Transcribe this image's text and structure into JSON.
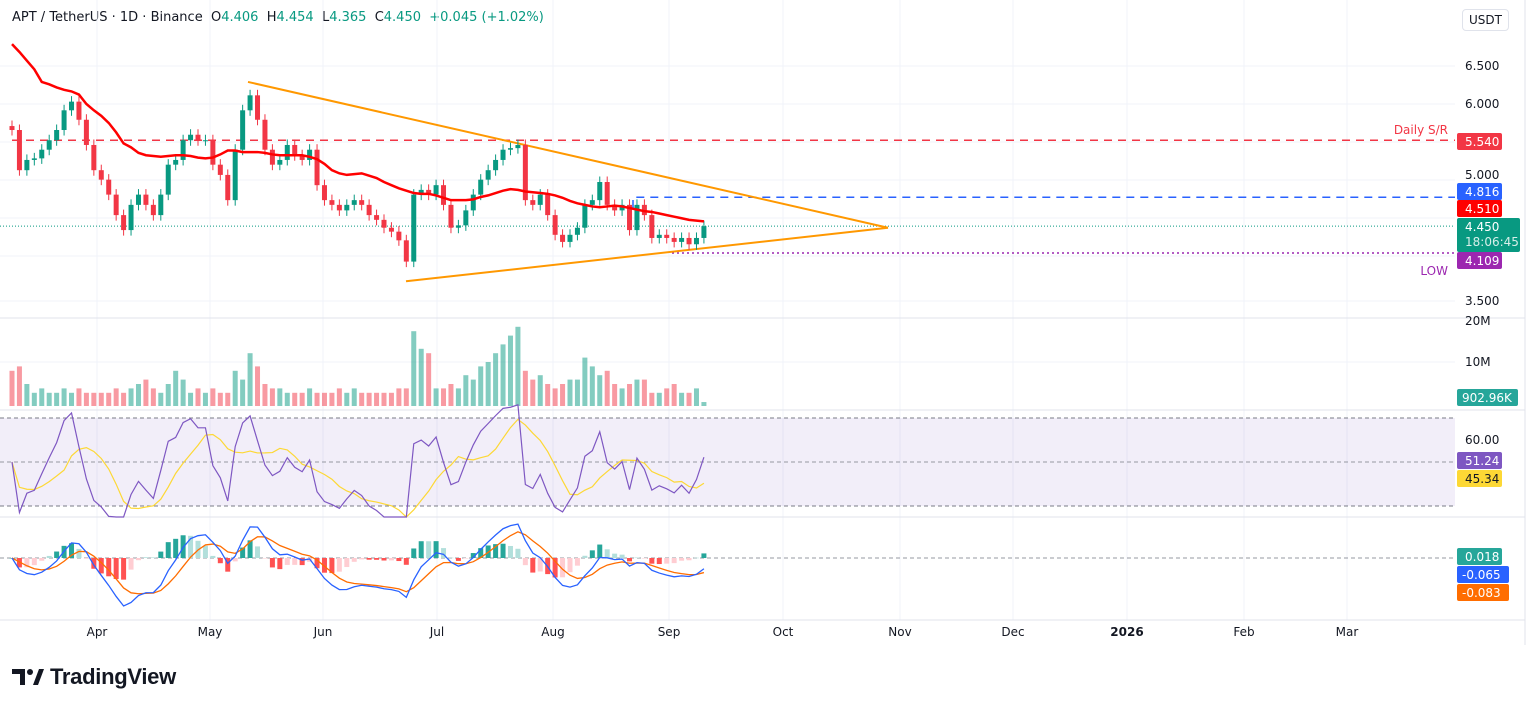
{
  "header": {
    "symbol": "APT / TetherUS · 1D · Binance",
    "o_label": "O",
    "o": "4.406",
    "h_label": "H",
    "h": "4.454",
    "l_label": "L",
    "l": "4.365",
    "c_label": "C",
    "c": "4.450",
    "change": "+0.045 (+1.02%)"
  },
  "currency": "USDT",
  "brand": "TradingView",
  "colors": {
    "up": "#089981",
    "down": "#f23645",
    "ma": "#ff0000",
    "triangle": "#ff9800",
    "resistance": "#f23645",
    "level_blue": "#2962ff",
    "low": "#9c27b0",
    "rsi": "#7e57c2",
    "rsi_ma": "#fdd835",
    "macd": "#2962ff",
    "signal": "#ff6d00"
  },
  "chart_data": {
    "type": "candlestick",
    "timeframe": "1D",
    "x_ticks": [
      "Apr",
      "May",
      "Jun",
      "Jul",
      "Aug",
      "Sep",
      "Oct",
      "Nov",
      "Dec",
      "2026",
      "Feb",
      "Mar"
    ],
    "price_axis": {
      "ticks": [
        "6.500",
        "6.000",
        "5.000",
        "3.500"
      ],
      "scale": "linear"
    },
    "closes": [
      5.67,
      5.16,
      5.29,
      5.31,
      5.42,
      5.54,
      5.67,
      5.92,
      6.03,
      5.8,
      5.48,
      5.16,
      5.04,
      4.85,
      4.59,
      4.4,
      4.72,
      4.85,
      4.72,
      4.59,
      4.85,
      5.23,
      5.29,
      5.54,
      5.61,
      5.54,
      5.54,
      5.23,
      5.1,
      4.78,
      5.42,
      5.92,
      6.11,
      5.8,
      5.42,
      5.23,
      5.29,
      5.48,
      5.35,
      5.29,
      5.42,
      4.97,
      4.78,
      4.72,
      4.65,
      4.72,
      4.78,
      4.72,
      4.59,
      4.53,
      4.43,
      4.38,
      4.27,
      4.0,
      4.85,
      4.91,
      4.85,
      4.97,
      4.72,
      4.43,
      4.46,
      4.65,
      4.85,
      5.04,
      5.16,
      5.29,
      5.42,
      5.44,
      5.48,
      4.78,
      4.72,
      4.85,
      4.59,
      4.34,
      4.25,
      4.34,
      4.43,
      4.72,
      4.78,
      5.01,
      4.72,
      4.65,
      4.72,
      4.4,
      4.72,
      4.59,
      4.3,
      4.34,
      4.3,
      4.25,
      4.3,
      4.22,
      4.3,
      4.45
    ],
    "moving_average": [
      6.76,
      6.66,
      6.55,
      6.44,
      6.28,
      6.25,
      6.21,
      6.18,
      6.16,
      6.12,
      6.0,
      5.92,
      5.85,
      5.76,
      5.64,
      5.5,
      5.45,
      5.38,
      5.35,
      5.34,
      5.33,
      5.34,
      5.35,
      5.35,
      5.34,
      5.32,
      5.31,
      5.32,
      5.36,
      5.41,
      5.41,
      5.39,
      5.39,
      5.39,
      5.38,
      5.36,
      5.35,
      5.35,
      5.35,
      5.35,
      5.33,
      5.3,
      5.24,
      5.16,
      5.12,
      5.1,
      5.11,
      5.12,
      5.09,
      5.06,
      5.01,
      4.97,
      4.93,
      4.9,
      4.87,
      4.86,
      4.86,
      4.84,
      4.81,
      4.78,
      4.78,
      4.78,
      4.79,
      4.82,
      4.84,
      4.87,
      4.9,
      4.92,
      4.91,
      4.89,
      4.88,
      4.87,
      4.86,
      4.84,
      4.81,
      4.77,
      4.74,
      4.72,
      4.7,
      4.69,
      4.7,
      4.71,
      4.7,
      4.68,
      4.66,
      4.64,
      4.63,
      4.61,
      4.59,
      4.57,
      4.55,
      4.53,
      4.52,
      4.51
    ],
    "volume_millions": [
      8,
      9,
      5,
      3,
      4,
      3,
      3,
      4,
      3,
      4,
      3,
      3,
      3,
      3,
      4,
      3,
      4,
      5,
      6,
      4,
      3,
      5,
      8,
      6,
      3,
      4,
      3,
      4,
      3,
      3,
      8,
      6,
      12,
      9,
      5,
      4,
      4,
      3,
      3,
      3,
      4,
      3,
      3,
      3,
      4,
      3,
      4,
      3,
      3,
      3,
      3,
      3,
      4,
      4,
      17,
      13,
      12,
      4,
      4,
      5,
      4,
      7,
      6,
      9,
      10,
      12,
      14,
      16,
      18,
      8,
      6,
      7,
      5,
      4,
      5,
      6,
      6,
      11,
      9,
      7,
      8,
      5,
      4,
      5,
      6,
      6,
      3,
      3,
      4,
      5,
      3,
      3,
      4,
      0.9
    ],
    "volume_axis": {
      "ticks": [
        "20M",
        "10M"
      ]
    },
    "levels": [
      {
        "name": "Daily S/R",
        "value": "5.540",
        "style": "dashed",
        "color": "#f23645"
      },
      {
        "value": "4.816",
        "style": "dashed",
        "color": "#2962ff"
      },
      {
        "name": "LOW",
        "value": "4.109",
        "style": "dotted",
        "color": "#9c27b0"
      }
    ],
    "triangle": {
      "upper": [
        6.28,
        4.43
      ],
      "lower": [
        3.75,
        4.43
      ]
    },
    "price_labels": {
      "ma": "4.510",
      "last": "4.450",
      "countdown": "18:06:45"
    },
    "volume_label": "902.96K",
    "rsi": {
      "ticks": [
        "60.00"
      ],
      "value": "51.24",
      "ma_value": "45.34",
      "upper": 70,
      "lower": 30
    },
    "macd": {
      "histogram": "0.018",
      "macd": "-0.065",
      "signal": "-0.083"
    }
  }
}
